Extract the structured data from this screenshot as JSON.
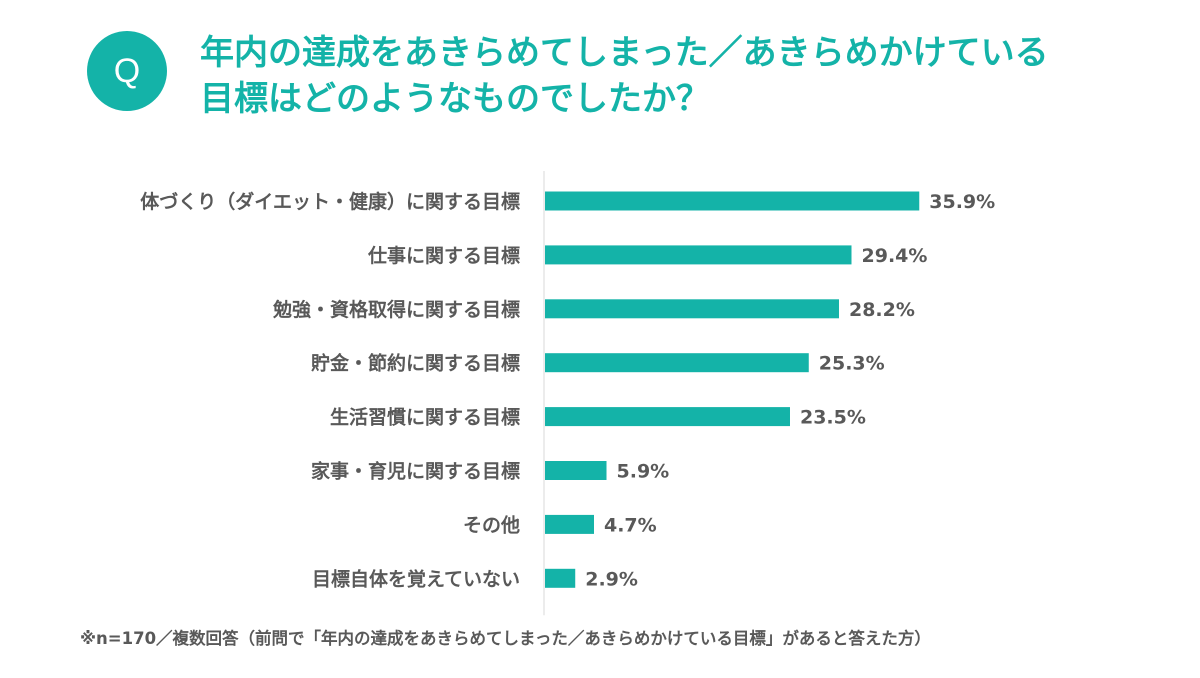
{
  "header": {
    "badge": "Q",
    "question_line1": "年内の達成をあきらめてしまった／あきらめかけている",
    "question_line2": "目標はどのようなものでしたか？"
  },
  "footnote": "※n=170／複数回答（前問で「年内の達成をあきらめてしまった／あきらめかけている目標」があると答えた方）",
  "colors": {
    "accent": "#14b3a8",
    "text": "#595959",
    "axis": "#d9d9d9"
  },
  "chart_data": {
    "type": "bar",
    "orientation": "horizontal",
    "categories": [
      "体づくり（ダイエット・健康）に関する目標",
      "仕事に関する目標",
      "勉強・資格取得に関する目標",
      "貯金・節約に関する目標",
      "生活習慣に関する目標",
      "家事・育児に関する目標",
      "その他",
      "目標自体を覚えていない"
    ],
    "values": [
      35.9,
      29.4,
      28.2,
      25.3,
      23.5,
      5.9,
      4.7,
      2.9
    ],
    "labels": [
      "35.9%",
      "29.4%",
      "28.2%",
      "25.3%",
      "23.5%",
      "5.9%",
      "4.7%",
      "2.9%"
    ],
    "unit": "%",
    "xlim": [
      0,
      63.5
    ],
    "grid": false,
    "legend": "none"
  }
}
